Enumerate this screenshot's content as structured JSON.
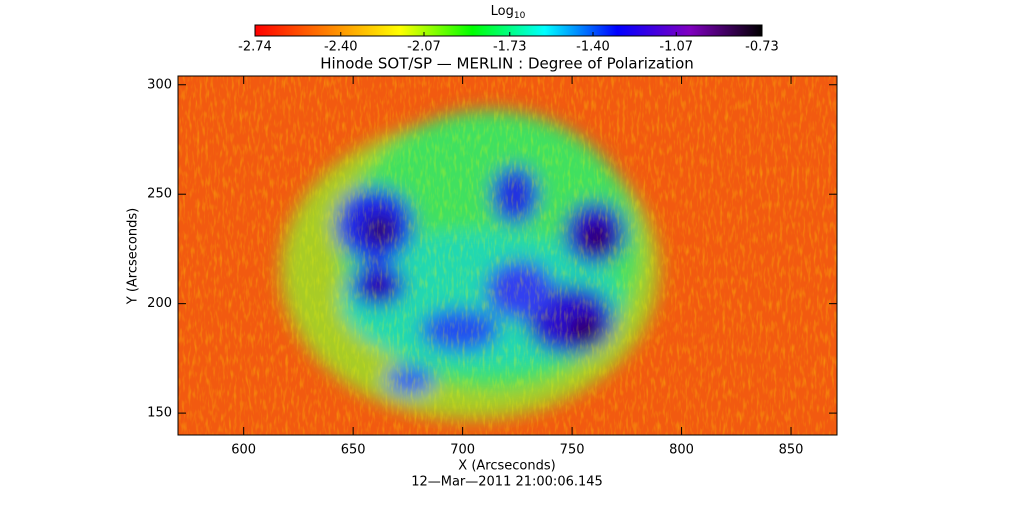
{
  "chart_data": {
    "type": "heatmap",
    "title": "Hinode SOT/SP — MERLIN : Degree of Polarization",
    "x_label": "X (Arcseconds)",
    "y_label": "Y (Arcseconds)",
    "footnote": "12—Mar—2011 21:00:06.145",
    "xlim": [
      570,
      871
    ],
    "xticks": [
      600,
      650,
      700,
      750,
      800,
      850
    ],
    "ylim": [
      140,
      304
    ],
    "yticks": [
      150,
      200,
      250,
      300
    ],
    "colorbar": {
      "title": "Log",
      "title_sub": "10",
      "clim": [
        -2.74,
        -0.73
      ],
      "ticks": [
        -2.74,
        {
          "value": -2.4,
          "label": "-2.40"
        },
        -2.07,
        -1.73,
        {
          "value": -1.4,
          "label": "-1.40"
        },
        -1.07,
        -0.73
      ],
      "colormap": [
        "#ff0000",
        "#ff8000",
        "#ffff00",
        "#00ff00",
        "#00ffff",
        "#0000ff",
        "#8000c0",
        "#000000"
      ]
    }
  }
}
